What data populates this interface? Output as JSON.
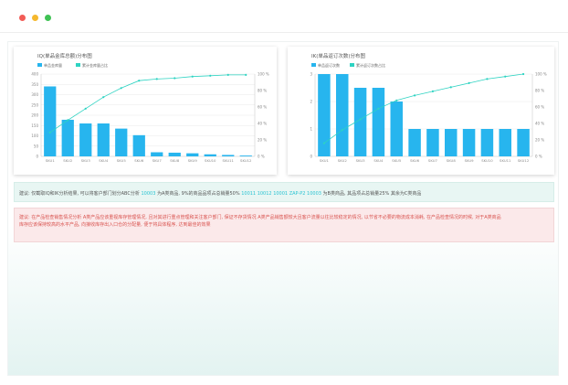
{
  "window": {
    "controls": [
      "close",
      "minimize",
      "maximize"
    ]
  },
  "colors": {
    "bar": "#27b5ee",
    "line": "#2ed3c2",
    "grid": "#e8e8e8",
    "note1_bg": "#e8f6f3",
    "note2_bg": "#fbe9ea",
    "highlight": "#2cc4d3"
  },
  "chart_data": [
    {
      "type": "bar",
      "title": "IQ(单品金库总额)分布图",
      "legend": [
        "单品金库量",
        "累计金库量占比"
      ],
      "legend_position": "top-left",
      "categories": [
        "SKU1",
        "SKU2",
        "SKU3",
        "SKU4",
        "SKU5",
        "SKU6",
        "SKU7",
        "SKU8",
        "SKU9",
        "SKU10",
        "SKU11",
        "SKU12"
      ],
      "series": [
        {
          "name": "单品金库量",
          "type": "bar",
          "axis": "left",
          "values": [
            340,
            178,
            160,
            160,
            135,
            103,
            20,
            18,
            15,
            10,
            7,
            4
          ]
        },
        {
          "name": "累计金库量占比",
          "type": "line",
          "axis": "right",
          "values": [
            29,
            44,
            58,
            72,
            83,
            92,
            94,
            95,
            97,
            98,
            99,
            99
          ]
        }
      ],
      "y_left_ticks": [
        "0",
        "50",
        "100",
        "150",
        "200",
        "250",
        "300",
        "350",
        "400"
      ],
      "y_right_ticks": [
        "0 %",
        "20 %",
        "40 %",
        "60 %",
        "80 %",
        "100 %"
      ],
      "ylim_left": [
        0,
        400
      ],
      "ylim_right": [
        0,
        100
      ],
      "grid": true
    },
    {
      "type": "bar",
      "title": "IK(单品返订次数)分布图",
      "legend": [
        "单品返订次数",
        "累计返订次数占比"
      ],
      "legend_position": "top-left",
      "categories": [
        "SKU1",
        "SKU2",
        "SKU3",
        "SKU4",
        "SKU5",
        "SKU6",
        "SKU7",
        "SKU8",
        "SKU9",
        "SKU10",
        "SKU11",
        "SKU12"
      ],
      "series": [
        {
          "name": "单品返订次数",
          "type": "bar",
          "axis": "left",
          "values": [
            3,
            3,
            2.5,
            2.5,
            2,
            1,
            1,
            1,
            1,
            1,
            1,
            1
          ]
        },
        {
          "name": "累计返订次数占比",
          "type": "line",
          "axis": "right",
          "values": [
            16,
            32,
            45,
            58,
            68,
            74,
            79,
            84,
            89,
            94,
            97,
            100
          ]
        }
      ],
      "y_left_ticks": [
        "0",
        "1",
        "2",
        "3"
      ],
      "y_right_ticks": [
        "0 %",
        "20 %",
        "40 %",
        "60 %",
        "80 %",
        "100 %"
      ],
      "ylim_left": [
        0,
        3
      ],
      "ylim_right": [
        0,
        100
      ],
      "grid": true
    }
  ],
  "notes": {
    "note1": {
      "prefix": "建议: 仅截取IQ和IK分析结果, 可以将客户部门划分ABC分析 ",
      "highlight1": "10003",
      "mid1": " 为A类商品, 9%的商品品项占总销量50%  ",
      "highlight2": "10011 10012 10001 ZAP-P2 10003",
      "suffix": " 为B类商品, 其品项占总销量25% 其余为C类商品"
    },
    "note2": {
      "line1": "建议: 在产品检查销售情况分析 A类产品应该重视库存管理情况, 且对其进行重点管理和关注客户部门, 保证不存货情况 A类产品销售额较大且客户流量以往比较稳定的情况, 以节省不必要的物流成本消耗, 在产品检查情况的时候, 对于A类商品",
      "line2": "库存应该保持较高的水平产品, 向接收库存出入口仓的分配量, 便于将具体程序, 达到最佳的效果"
    }
  }
}
